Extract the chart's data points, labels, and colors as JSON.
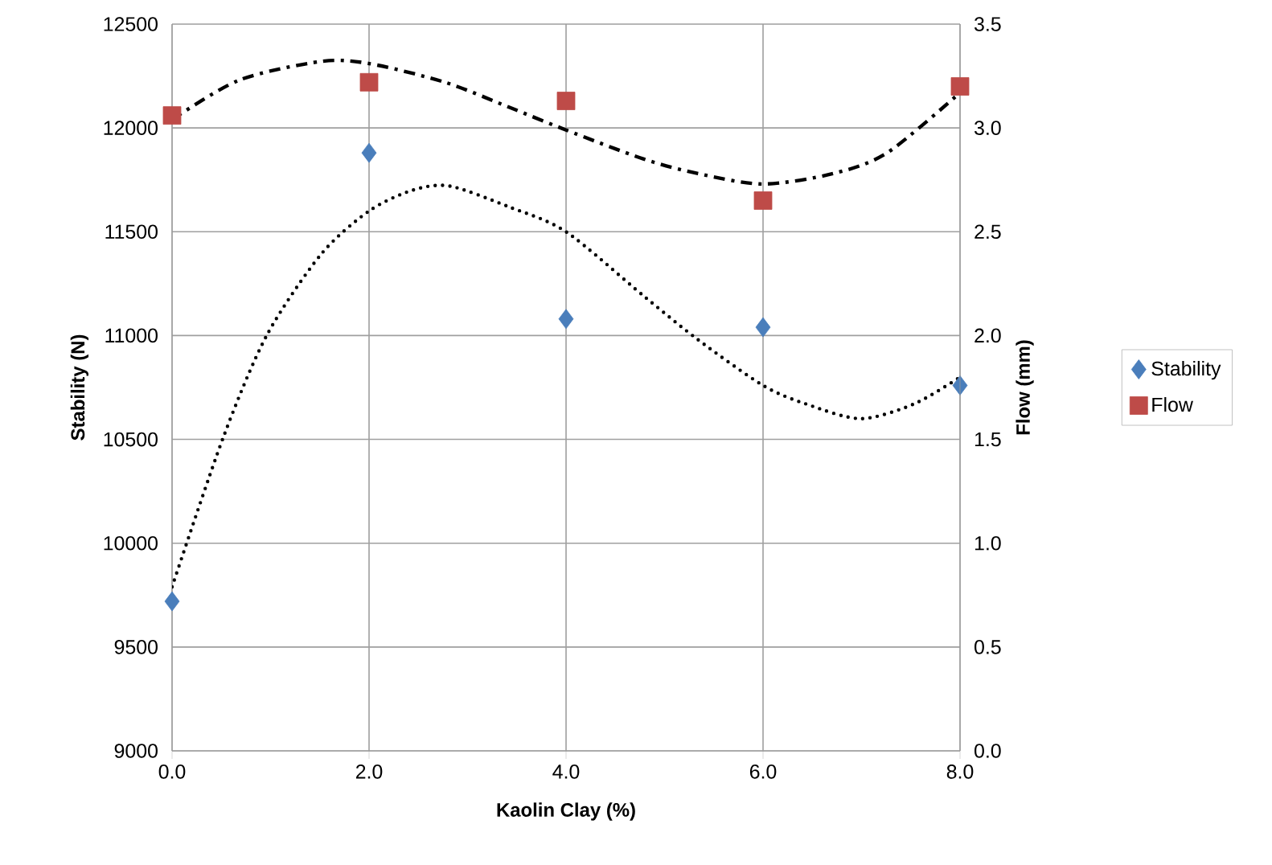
{
  "chart_data": {
    "type": "scatter",
    "xlabel": "Kaolin Clay (%)",
    "ylabel": "Stability (N)",
    "y2label": "Flow (mm)",
    "xlim": [
      0,
      8
    ],
    "xticks": [
      {
        "value": 0,
        "label": "0.0"
      },
      {
        "value": 2,
        "label": "2.0"
      },
      {
        "value": 4,
        "label": "4.0"
      },
      {
        "value": 6,
        "label": "6.0"
      },
      {
        "value": 8,
        "label": "8.0"
      }
    ],
    "ylim": [
      9000,
      12500
    ],
    "yticks": [
      9000,
      9500,
      10000,
      10500,
      11000,
      11500,
      12000,
      12500
    ],
    "y2lim": [
      0,
      3.5
    ],
    "y2ticks": [
      {
        "value": 0,
        "label": "0.0"
      },
      {
        "value": 0.5,
        "label": "0.5"
      },
      {
        "value": 1,
        "label": "1.0"
      },
      {
        "value": 1.5,
        "label": "1.5"
      },
      {
        "value": 2,
        "label": "2.0"
      },
      {
        "value": 2.5,
        "label": "2.5"
      },
      {
        "value": 3,
        "label": "3.0"
      },
      {
        "value": 3.5,
        "label": "3.5"
      }
    ],
    "grid": true,
    "legend": "right",
    "series": [
      {
        "name": "Stability",
        "color": "#4a7ebb",
        "marker": "diamond",
        "x": [
          0,
          2,
          4,
          6,
          8
        ],
        "values": [
          9720,
          11880,
          11080,
          11040,
          10760
        ]
      },
      {
        "name": "Flow",
        "axis": "y2",
        "color": "#be4b48",
        "marker": "square",
        "x": [
          0,
          2,
          4,
          6,
          8
        ],
        "values": [
          3.06,
          3.22,
          3.13,
          2.65,
          3.2
        ]
      },
      {
        "type": "line",
        "color": "#000000",
        "line_style": "dotted",
        "marker": "none",
        "x": [
          0,
          0.52,
          0.96,
          1.51,
          2,
          2.44,
          2.82,
          3.42,
          4,
          4.79,
          5.34,
          6,
          6.44,
          6.99,
          7.53,
          8
        ],
        "values": [
          9790,
          10510,
          11000,
          11390,
          11600,
          11700,
          11720,
          11620,
          11500,
          11190,
          10980,
          10760,
          10670,
          10600,
          10670,
          10800
        ]
      },
      {
        "type": "line",
        "axis": "y2",
        "color": "#000000",
        "line_style": "dashdot",
        "marker": "none",
        "x": [
          0,
          0.68,
          1.51,
          2,
          2.77,
          3.42,
          4,
          4.79,
          5.34,
          6,
          6.71,
          7.26,
          8
        ],
        "values": [
          3.04,
          3.23,
          3.32,
          3.31,
          3.22,
          3.1,
          2.99,
          2.85,
          2.78,
          2.73,
          2.78,
          2.88,
          3.17
        ]
      }
    ]
  }
}
